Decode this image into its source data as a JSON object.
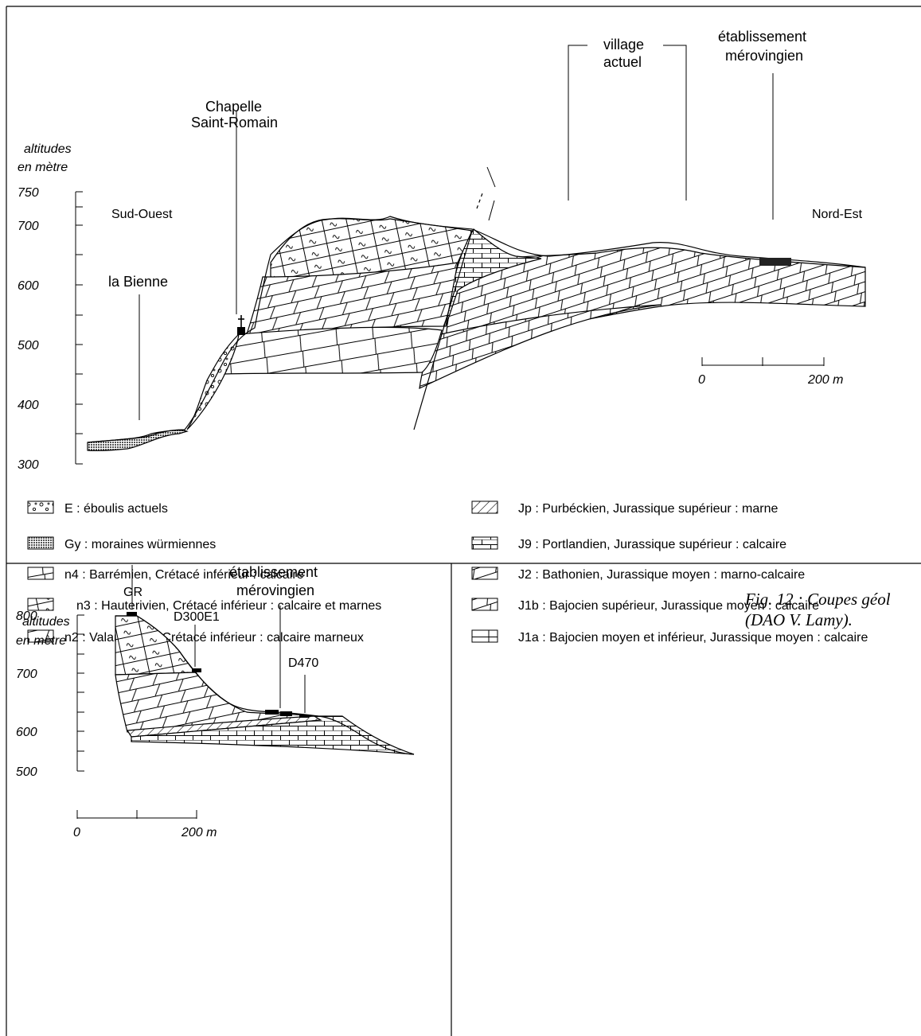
{
  "colors": {
    "ink": "#000000",
    "paper": "#ffffff"
  },
  "top_section": {
    "axis": {
      "title_line1": "altitudes",
      "title_line2": "en mètre",
      "ticks": [
        "750",
        "700",
        "600",
        "500",
        "400",
        "300"
      ]
    },
    "labels": {
      "chapelle_line1": "Chapelle",
      "chapelle_line2": "Saint-Romain",
      "village_line1": "village",
      "village_line2": "actuel",
      "etab_line1": "établissement",
      "etab_line2": "mérovingien",
      "sud_ouest": "Sud-Ouest",
      "nord_est": "Nord-Est",
      "bienne": "la Bienne"
    },
    "scale": {
      "start": "0",
      "end": "200 m"
    }
  },
  "legend": {
    "left": [
      {
        "symbol": "eboulis-pattern",
        "text": "E : éboulis actuels"
      },
      {
        "symbol": "moraine-pattern",
        "text": "Gy : moraines würmiennes"
      },
      {
        "symbol": "n4-pattern",
        "text": "n4 : Barrémien, Crétacé inférieur : calcaire"
      },
      {
        "symbol": "n3-pattern",
        "text": "n3 : Hauterivien, Crétacé inférieur : calcaire et marnes"
      },
      {
        "symbol": "n2-pattern",
        "text": "n2 : Valanginien, Crétacé inférieur : calcaire marneux"
      }
    ],
    "right": [
      {
        "symbol": "jp-pattern",
        "text": "Jp : Purbéckien, Jurassique supérieur : marne"
      },
      {
        "symbol": "j9-pattern",
        "text": "J9 : Portlandien, Jurassique supérieur : calcaire"
      },
      {
        "symbol": "j2-pattern",
        "text": "J2 : Bathonien, Jurassique moyen : marno-calcaire"
      },
      {
        "symbol": "j1b-pattern",
        "text": "J1b : Bajocien supérieur, Jurassique moyen : calcaire"
      },
      {
        "symbol": "j1a-pattern",
        "text": "J1a : Bajocien moyen et inférieur, Jurassique moyen : calcaire"
      }
    ]
  },
  "bottom_section": {
    "axis": {
      "title_line1": "altitudes",
      "title_line2": "en mètre",
      "ticks": [
        "800",
        "700",
        "600",
        "500"
      ]
    },
    "labels": {
      "gr": "GR",
      "d300": "D300E1",
      "etab_line1": "établissement",
      "etab_line2": "mérovingien",
      "d470": "D470"
    },
    "scale": {
      "start": "0",
      "end": "200 m"
    }
  },
  "caption": {
    "line1": "Fig. 12 : Coupes géol",
    "line2": "(DAO V. Lamy)."
  }
}
